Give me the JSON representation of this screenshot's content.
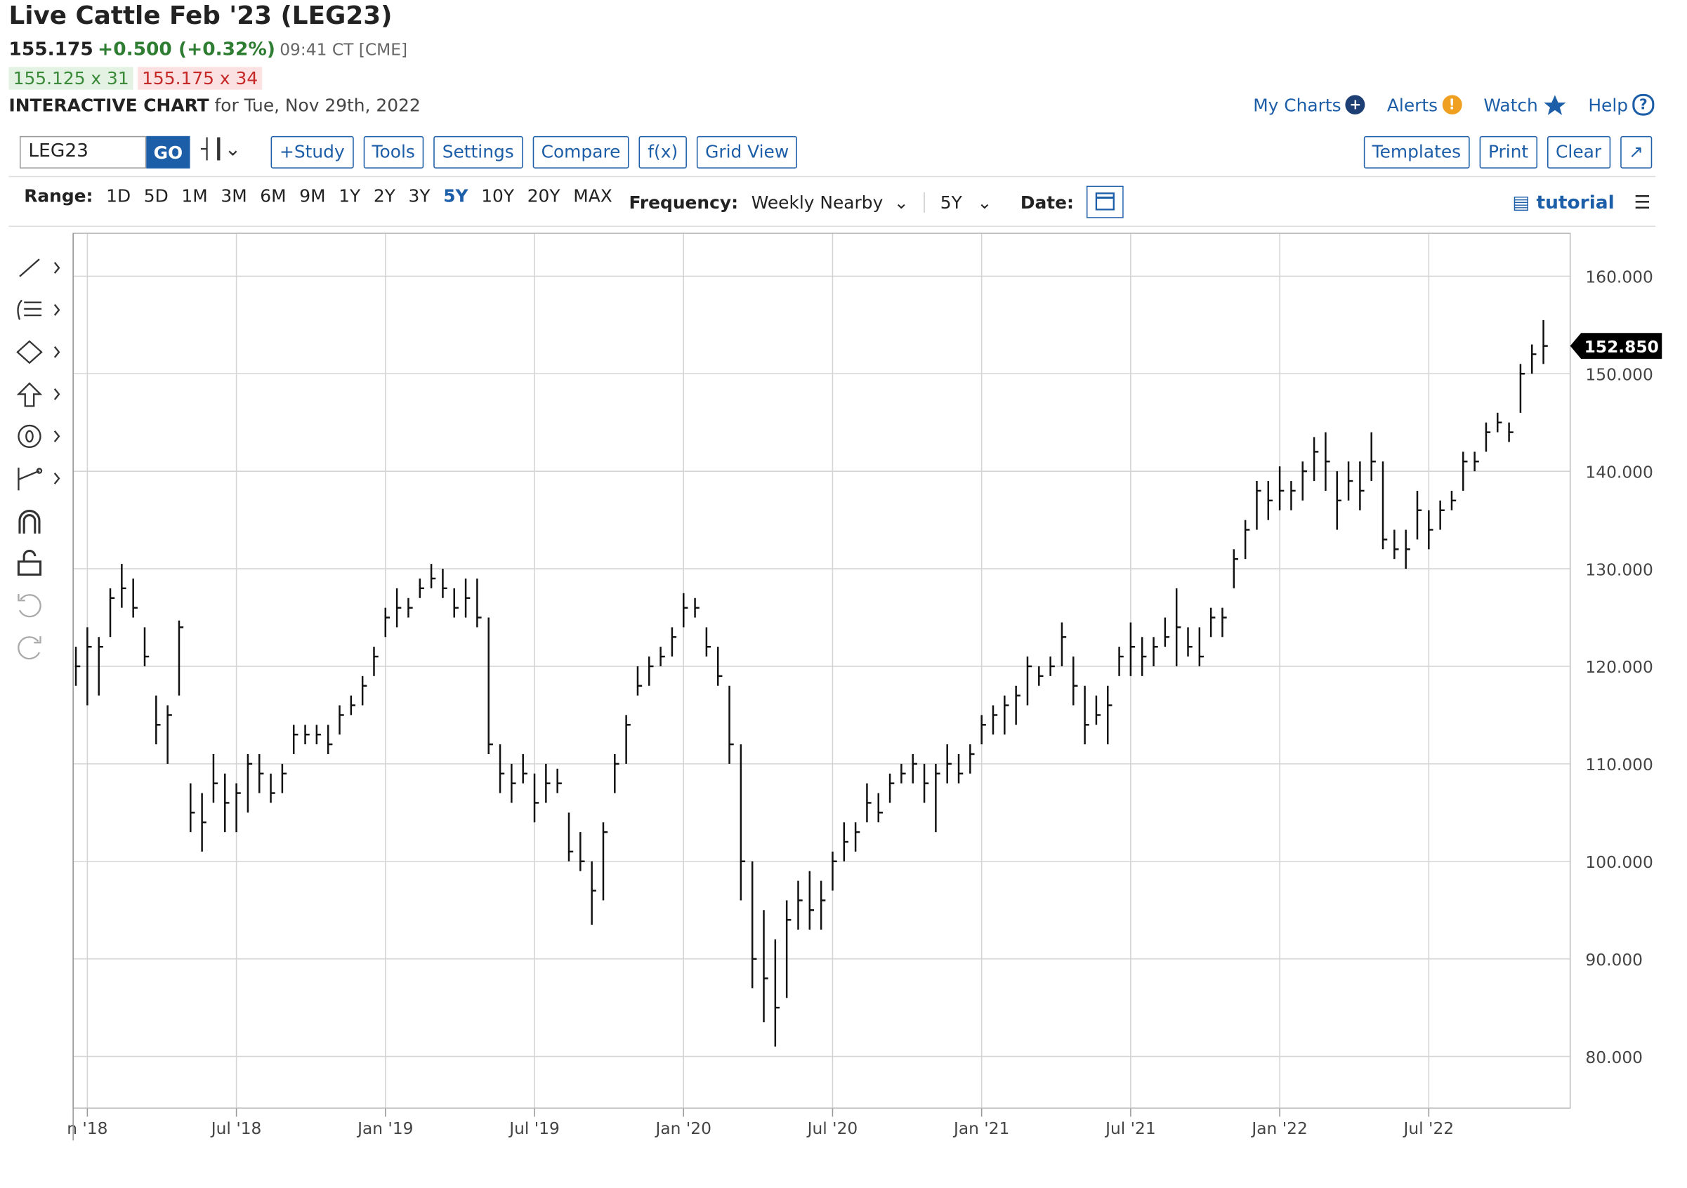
{
  "header": {
    "title": "Live Cattle Feb '23 (LEG23)",
    "last": "155.175",
    "change": "+0.500 (+0.32%)",
    "time": "09:41 CT [CME]",
    "bid": "155.125 x 31",
    "ask": "155.175 x 34",
    "chart_label": "INTERACTIVE CHART",
    "chart_date": "for Tue, Nov 29th, 2022"
  },
  "top_links": [
    "My Charts",
    "Alerts",
    "Watch",
    "Help"
  ],
  "toolbar": {
    "symbol": "LEG23",
    "go": "GO",
    "buttons": [
      "+Study",
      "Tools",
      "Settings",
      "Compare",
      "f(x)",
      "Grid View"
    ],
    "right_buttons": [
      "Templates",
      "Print",
      "Clear"
    ]
  },
  "range_bar": {
    "range_label": "Range:",
    "ranges": [
      "1D",
      "5D",
      "1M",
      "3M",
      "6M",
      "9M",
      "1Y",
      "2Y",
      "3Y",
      "5Y",
      "10Y",
      "20Y",
      "MAX"
    ],
    "active_range": 9,
    "frequency_label": "Frequency:",
    "frequency": "Weekly Nearby",
    "period": "5Y",
    "date_label": "Date:",
    "tutorial": "tutorial"
  },
  "chart_data": {
    "type": "ohlc",
    "color": "#111111",
    "grid": true,
    "categories": [
      null,
      "n '18",
      null,
      null,
      null,
      null,
      null,
      null,
      null,
      null,
      null,
      null,
      null,
      null,
      "Jul '18",
      null,
      null,
      null,
      null,
      null,
      null,
      null,
      null,
      null,
      null,
      null,
      null,
      "Jan '19",
      null,
      null,
      null,
      null,
      null,
      null,
      null,
      null,
      null,
      null,
      null,
      null,
      "Jul '19",
      null,
      null,
      null,
      null,
      null,
      null,
      null,
      null,
      null,
      null,
      null,
      null,
      "Jan '20",
      null,
      null,
      null,
      null,
      null,
      null,
      null,
      null,
      null,
      null,
      null,
      null,
      "Jul '20",
      null,
      null,
      null,
      null,
      null,
      null,
      null,
      null,
      null,
      null,
      null,
      null,
      "Jan '21",
      null,
      null,
      null,
      null,
      null,
      null,
      null,
      null,
      null,
      null,
      null,
      null,
      "Jul '21",
      null,
      null,
      null,
      null,
      null,
      null,
      null,
      null,
      null,
      null,
      null,
      null,
      "Jan '22",
      null,
      null,
      null,
      null,
      null,
      null,
      null,
      null,
      null,
      null,
      null,
      null,
      "Jul '22",
      null,
      null,
      null,
      null,
      null,
      null,
      null,
      null,
      null,
      null
    ],
    "high": [
      122,
      124,
      123,
      128,
      130.5,
      129,
      124,
      117,
      116,
      124.7,
      108,
      107,
      111,
      109,
      108,
      111,
      111,
      109,
      110,
      114,
      114,
      114,
      114,
      116,
      117,
      119,
      122,
      126,
      128,
      127,
      129,
      130.5,
      130,
      128,
      129,
      129,
      125,
      112,
      110,
      111,
      109,
      110,
      109.5,
      105,
      103,
      100,
      104,
      111,
      115,
      120,
      121,
      122,
      124,
      127.5,
      127,
      124,
      122,
      118,
      112,
      100,
      95,
      92,
      96,
      98,
      99,
      98,
      101,
      104,
      104,
      108,
      107,
      109,
      110,
      111,
      110,
      110,
      112,
      111,
      112,
      115,
      116,
      117,
      118,
      121,
      120,
      121,
      124.5,
      121,
      118,
      117,
      118,
      122,
      124.5,
      123,
      123,
      125,
      128,
      124,
      124,
      126,
      126,
      132,
      135,
      139,
      139,
      140.5,
      139,
      141,
      143.5,
      144,
      140,
      141,
      141,
      144,
      141,
      134,
      134,
      138,
      136,
      137,
      138,
      142,
      142,
      145,
      146,
      145,
      151,
      153,
      155.5
    ],
    "low": [
      118,
      116,
      117,
      123,
      126,
      125,
      120,
      112,
      110,
      117,
      103,
      101,
      106,
      103,
      103,
      105,
      107,
      106,
      107,
      111,
      112,
      112,
      111,
      113,
      115,
      116,
      119,
      123,
      124,
      125,
      127,
      128,
      127,
      125,
      125,
      124,
      111,
      107,
      106,
      108,
      104,
      106,
      107,
      100,
      99,
      93.5,
      96,
      107,
      110,
      117,
      118,
      120,
      121,
      124,
      125,
      121,
      118,
      110,
      96,
      87,
      83.5,
      81,
      86,
      93,
      93,
      93,
      97,
      100,
      101,
      104,
      104,
      106,
      108,
      108,
      106,
      103,
      108,
      108,
      109,
      112,
      113,
      113,
      114,
      116,
      118,
      119,
      120,
      116,
      112,
      114,
      112,
      119,
      119,
      119,
      120,
      122,
      120,
      121,
      120,
      123,
      123,
      128,
      131,
      134,
      135,
      136,
      136,
      137,
      139,
      138,
      134,
      137,
      136,
      139,
      132,
      131,
      130,
      133,
      132,
      134,
      136,
      138,
      140,
      142,
      144,
      143,
      146,
      150,
      151
    ],
    "close": [
      120,
      122,
      122,
      127,
      128,
      126,
      121,
      114,
      115,
      124,
      105,
      104,
      108,
      106,
      107,
      110,
      109,
      107,
      109,
      113,
      113,
      113,
      112,
      115,
      116,
      118,
      121,
      125,
      126,
      126,
      128,
      129,
      128,
      126,
      127,
      125,
      112,
      109,
      108,
      109,
      106,
      108,
      108,
      101,
      100,
      97,
      103,
      110,
      114,
      118,
      120,
      121,
      123,
      126,
      126,
      122,
      119,
      112,
      100,
      90,
      88,
      85,
      94,
      96,
      95,
      96,
      100,
      102,
      103,
      106,
      105,
      108,
      109,
      110,
      108,
      109,
      110,
      109,
      111,
      114,
      115,
      116,
      117,
      120,
      119,
      120,
      123,
      118,
      114,
      115,
      116,
      121,
      122,
      121,
      122,
      123,
      124,
      122,
      121,
      125,
      125,
      131,
      134,
      138,
      137,
      138,
      138,
      140,
      142,
      141,
      137,
      139,
      138,
      141,
      133,
      132,
      132,
      136,
      134,
      136,
      137,
      141,
      141,
      144,
      145,
      144,
      150,
      152,
      152.85
    ],
    "ylim": [
      74.7,
      164.4
    ],
    "yticks": [
      {
        "value": 80,
        "label": "80.000"
      },
      {
        "value": 90,
        "label": "90.000"
      },
      {
        "value": 100,
        "label": "100.000"
      },
      {
        "value": 110,
        "label": "110.000"
      },
      {
        "value": 120,
        "label": "120.000"
      },
      {
        "value": 130,
        "label": "130.000"
      },
      {
        "value": 140,
        "label": "140.000"
      },
      {
        "value": 150,
        "label": "150.000"
      },
      {
        "value": 160,
        "label": "160.000"
      }
    ],
    "last_value": {
      "value": 152.85,
      "label": "152.850"
    }
  }
}
